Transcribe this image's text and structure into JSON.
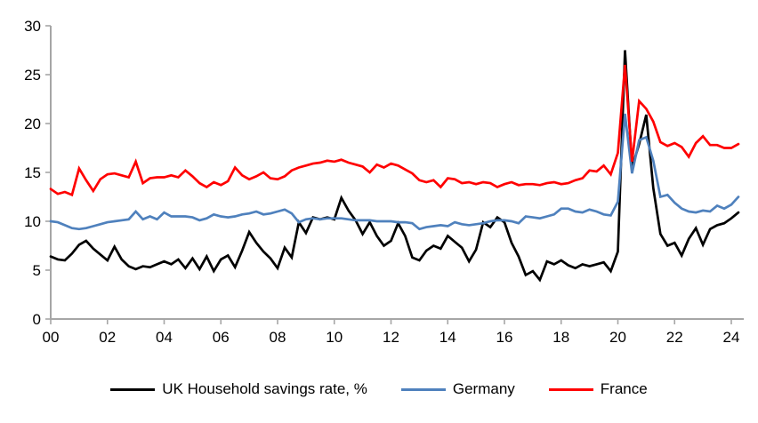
{
  "figure": {
    "background": "#ffffff",
    "axis_color": "#a6a6a6",
    "text_color": "#000000"
  },
  "legend": {
    "items": [
      {
        "label": "UK Household savings rate, %",
        "color": "#000000"
      },
      {
        "label": "Germany",
        "color": "#4F81BD"
      },
      {
        "label": "France",
        "color": "#FF0000"
      }
    ]
  },
  "chart_data": {
    "type": "line",
    "title": "",
    "xlabel": "",
    "ylabel": "",
    "x_unit": "year, quarterly data (2000Q1 - 2024Q2)",
    "x_tick_labels": [
      "00",
      "02",
      "04",
      "06",
      "08",
      "10",
      "12",
      "14",
      "16",
      "18",
      "20",
      "22",
      "24"
    ],
    "y_ticks": [
      0,
      5,
      10,
      15,
      20,
      25,
      30
    ],
    "ylim": [
      0,
      30
    ],
    "grid": false,
    "legend_position": "bottom-center",
    "axis_color": "#a6a6a6",
    "series": [
      {
        "name": "UK Household savings rate, %",
        "color": "#000000",
        "stroke_width": 2.7,
        "values": [
          6.4,
          6.1,
          6.0,
          6.7,
          7.6,
          8.0,
          7.2,
          6.6,
          6.0,
          7.4,
          6.1,
          5.4,
          5.1,
          5.4,
          5.3,
          5.6,
          5.9,
          5.6,
          6.1,
          5.2,
          6.2,
          5.1,
          6.4,
          4.9,
          6.1,
          6.5,
          5.3,
          7.0,
          8.9,
          7.8,
          6.9,
          6.2,
          5.2,
          7.3,
          6.3,
          9.9,
          8.8,
          10.4,
          10.2,
          10.4,
          10.2,
          12.4,
          11.1,
          10.1,
          8.7,
          9.9,
          8.5,
          7.5,
          8.0,
          9.8,
          8.5,
          6.3,
          6.0,
          7.0,
          7.5,
          7.2,
          8.5,
          7.9,
          7.3,
          5.9,
          7.1,
          9.9,
          9.4,
          10.4,
          9.9,
          7.8,
          6.4,
          4.5,
          4.9,
          4.0,
          5.9,
          5.6,
          6.0,
          5.5,
          5.2,
          5.6,
          5.4,
          5.6,
          5.8,
          4.9,
          6.9,
          27.5,
          15.5,
          17.9,
          20.9,
          13.4,
          8.7,
          7.5,
          7.8,
          6.5,
          8.2,
          9.3,
          7.6,
          9.2,
          9.6,
          9.8,
          10.3,
          10.9
        ]
      },
      {
        "name": "Germany",
        "color": "#4F81BD",
        "stroke_width": 2.7,
        "values": [
          10.0,
          9.9,
          9.6,
          9.3,
          9.2,
          9.3,
          9.5,
          9.7,
          9.9,
          10.0,
          10.1,
          10.2,
          11.0,
          10.2,
          10.5,
          10.2,
          10.9,
          10.5,
          10.5,
          10.5,
          10.4,
          10.1,
          10.3,
          10.7,
          10.5,
          10.4,
          10.5,
          10.7,
          10.8,
          11.0,
          10.7,
          10.8,
          11.0,
          11.2,
          10.8,
          9.9,
          10.2,
          10.3,
          10.2,
          10.3,
          10.3,
          10.3,
          10.2,
          10.1,
          10.1,
          10.1,
          10.0,
          10.0,
          10.0,
          9.9,
          9.9,
          9.8,
          9.2,
          9.4,
          9.5,
          9.6,
          9.5,
          9.9,
          9.7,
          9.6,
          9.7,
          9.8,
          10.0,
          10.1,
          10.1,
          10.0,
          9.8,
          10.5,
          10.4,
          10.3,
          10.5,
          10.7,
          11.3,
          11.3,
          11.0,
          10.9,
          11.2,
          11.0,
          10.7,
          10.6,
          12.0,
          21.0,
          14.9,
          18.3,
          18.6,
          16.2,
          12.5,
          12.7,
          11.9,
          11.3,
          11.0,
          10.9,
          11.1,
          11.0,
          11.6,
          11.3,
          11.7,
          12.5
        ]
      },
      {
        "name": "France",
        "color": "#FF0000",
        "stroke_width": 2.7,
        "values": [
          13.3,
          12.8,
          13.0,
          12.7,
          15.4,
          14.2,
          13.1,
          14.3,
          14.8,
          14.9,
          14.7,
          14.5,
          16.1,
          13.9,
          14.4,
          14.5,
          14.5,
          14.7,
          14.5,
          15.2,
          14.6,
          13.9,
          13.5,
          14.0,
          13.7,
          14.1,
          15.5,
          14.7,
          14.3,
          14.6,
          15.0,
          14.4,
          14.3,
          14.6,
          15.2,
          15.5,
          15.7,
          15.9,
          16.0,
          16.2,
          16.1,
          16.3,
          16.0,
          15.8,
          15.6,
          15.0,
          15.8,
          15.5,
          15.9,
          15.7,
          15.3,
          14.9,
          14.2,
          14.0,
          14.2,
          13.5,
          14.4,
          14.3,
          13.9,
          14.0,
          13.8,
          14.0,
          13.9,
          13.5,
          13.8,
          14.0,
          13.7,
          13.8,
          13.8,
          13.7,
          13.9,
          14.0,
          13.8,
          13.9,
          14.2,
          14.4,
          15.2,
          15.1,
          15.7,
          14.8,
          17.0,
          26.0,
          16.1,
          22.3,
          21.5,
          20.2,
          18.1,
          17.7,
          18.0,
          17.6,
          16.6,
          18.0,
          18.7,
          17.8,
          17.8,
          17.5,
          17.5,
          17.9
        ]
      }
    ]
  }
}
